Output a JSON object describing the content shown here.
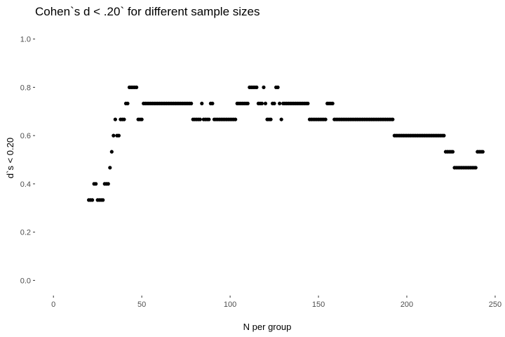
{
  "chart_data": {
    "type": "scatter",
    "title": "Cohen`s d < .20` for different sample sizes",
    "xlabel": "N per group",
    "ylabel": "d`s < 0.20",
    "xlim": [
      -10,
      252
    ],
    "ylim": [
      -0.06,
      1.06
    ],
    "x_ticks": [
      0,
      50,
      100,
      150,
      200,
      250
    ],
    "y_ticks": [
      0.0,
      0.2,
      0.4,
      0.6,
      0.8,
      1.0
    ],
    "x_tick_labels": [
      "0",
      "50",
      "100",
      "150",
      "200",
      "250"
    ],
    "y_tick_labels": [
      "0.0",
      "0.2",
      "0.4",
      "0.6",
      "0.8",
      "1.0"
    ],
    "grid": false,
    "point_color": "#000000",
    "segments": [
      {
        "from": 20,
        "to": 22,
        "y": 0.333
      },
      {
        "from": 23,
        "to": 24,
        "y": 0.4
      },
      {
        "from": 25,
        "to": 28,
        "y": 0.333
      },
      {
        "from": 29,
        "to": 31,
        "y": 0.4
      },
      {
        "from": 32,
        "to": 32,
        "y": 0.467
      },
      {
        "from": 33,
        "to": 33,
        "y": 0.533
      },
      {
        "from": 34,
        "to": 34,
        "y": 0.6
      },
      {
        "from": 35,
        "to": 35,
        "y": 0.667
      },
      {
        "from": 36,
        "to": 37,
        "y": 0.6
      },
      {
        "from": 38,
        "to": 40,
        "y": 0.667
      },
      {
        "from": 41,
        "to": 42,
        "y": 0.733
      },
      {
        "from": 43,
        "to": 47,
        "y": 0.8
      },
      {
        "from": 48,
        "to": 50,
        "y": 0.667
      },
      {
        "from": 51,
        "to": 78,
        "y": 0.733
      },
      {
        "from": 79,
        "to": 83,
        "y": 0.667
      },
      {
        "from": 84,
        "to": 84,
        "y": 0.733
      },
      {
        "from": 85,
        "to": 88,
        "y": 0.667
      },
      {
        "from": 89,
        "to": 90,
        "y": 0.733
      },
      {
        "from": 91,
        "to": 103,
        "y": 0.667
      },
      {
        "from": 104,
        "to": 110,
        "y": 0.733
      },
      {
        "from": 111,
        "to": 115,
        "y": 0.8
      },
      {
        "from": 116,
        "to": 118,
        "y": 0.733
      },
      {
        "from": 119,
        "to": 119,
        "y": 0.8
      },
      {
        "from": 120,
        "to": 120,
        "y": 0.733
      },
      {
        "from": 121,
        "to": 123,
        "y": 0.667
      },
      {
        "from": 124,
        "to": 125,
        "y": 0.733
      },
      {
        "from": 126,
        "to": 127,
        "y": 0.8
      },
      {
        "from": 128,
        "to": 128,
        "y": 0.733
      },
      {
        "from": 129,
        "to": 129,
        "y": 0.667
      },
      {
        "from": 130,
        "to": 144,
        "y": 0.733
      },
      {
        "from": 145,
        "to": 154,
        "y": 0.667
      },
      {
        "from": 155,
        "to": 158,
        "y": 0.733
      },
      {
        "from": 159,
        "to": 192,
        "y": 0.667
      },
      {
        "from": 193,
        "to": 221,
        "y": 0.6
      },
      {
        "from": 222,
        "to": 226,
        "y": 0.533
      },
      {
        "from": 227,
        "to": 239,
        "y": 0.467
      },
      {
        "from": 240,
        "to": 243,
        "y": 0.533
      }
    ]
  }
}
